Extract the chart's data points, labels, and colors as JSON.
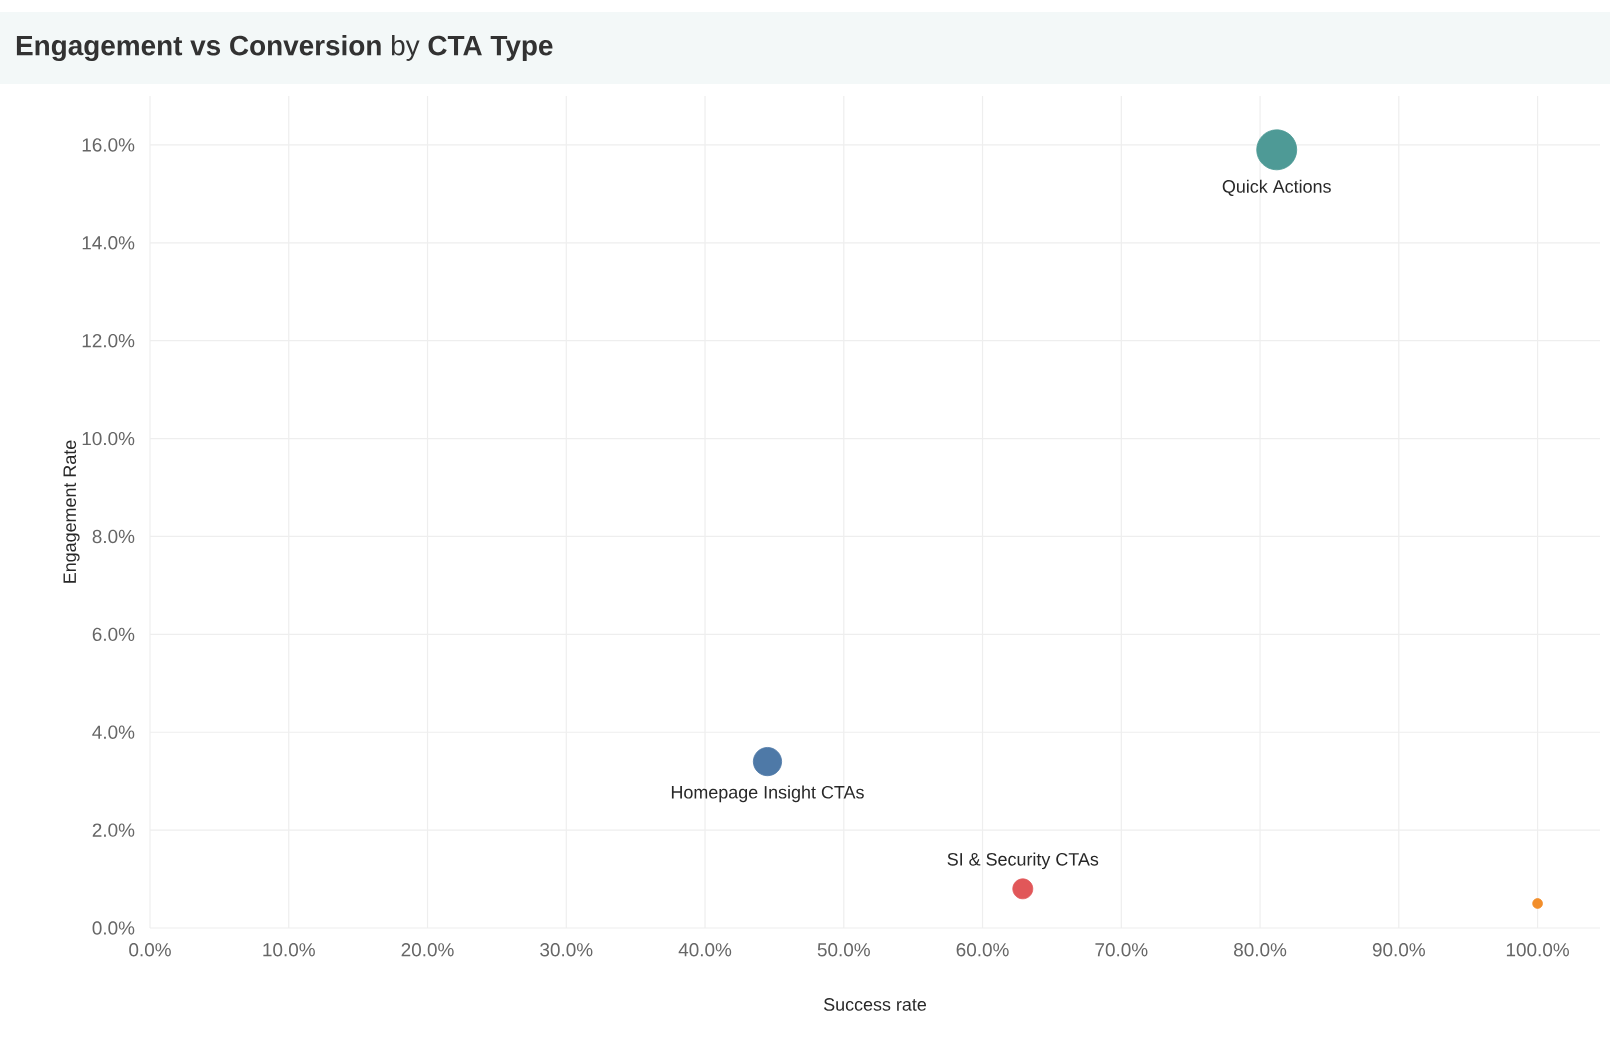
{
  "chart_data": {
    "type": "bubble",
    "title": "**Engagement vs Conversion** by **CTA Type**",
    "xlabel": "Success rate",
    "ylabel": "Engagement Rate",
    "xlim": [
      0,
      104.5
    ],
    "ylim": [
      0,
      17
    ],
    "xticks": [
      {
        "value": 0,
        "label": "0.0%"
      },
      {
        "value": 10,
        "label": "10.0%"
      },
      {
        "value": 20,
        "label": "20.0%"
      },
      {
        "value": 30,
        "label": "30.0%"
      },
      {
        "value": 40,
        "label": "40.0%"
      },
      {
        "value": 50,
        "label": "50.0%"
      },
      {
        "value": 60,
        "label": "60.0%"
      },
      {
        "value": 70,
        "label": "70.0%"
      },
      {
        "value": 80,
        "label": "80.0%"
      },
      {
        "value": 90,
        "label": "90.0%"
      },
      {
        "value": 100,
        "label": "100.0%"
      }
    ],
    "yticks": [
      {
        "value": 0,
        "label": "0.0%"
      },
      {
        "value": 2,
        "label": "2.0%"
      },
      {
        "value": 4,
        "label": "4.0%"
      },
      {
        "value": 6,
        "label": "6.0%"
      },
      {
        "value": 8,
        "label": "8.0%"
      },
      {
        "value": 10,
        "label": "10.0%"
      },
      {
        "value": 12,
        "label": "12.0%"
      },
      {
        "value": 14,
        "label": "14.0%"
      },
      {
        "value": 16,
        "label": "16.0%"
      }
    ],
    "grid": true,
    "legend": false,
    "series": [
      {
        "name": "Quick Actions",
        "color": "#4e9a96",
        "x": [
          81.2
        ],
        "values": [
          15.9
        ],
        "sizes": [
          1
        ]
      },
      {
        "name": "Homepage Insight CTAs",
        "color": "#4e79a7",
        "x": [
          44.5
        ],
        "values": [
          3.4
        ],
        "sizes": [
          0.5
        ]
      },
      {
        "name": "SI & Security CTAs",
        "color": "#e15759",
        "x": [
          62.9
        ],
        "values": [
          0.8
        ],
        "sizes": [
          0.25
        ]
      },
      {
        "color": "#f28e2b",
        "x": [
          100
        ],
        "values": [
          0.5
        ],
        "sizes": [
          0.06
        ]
      }
    ]
  }
}
